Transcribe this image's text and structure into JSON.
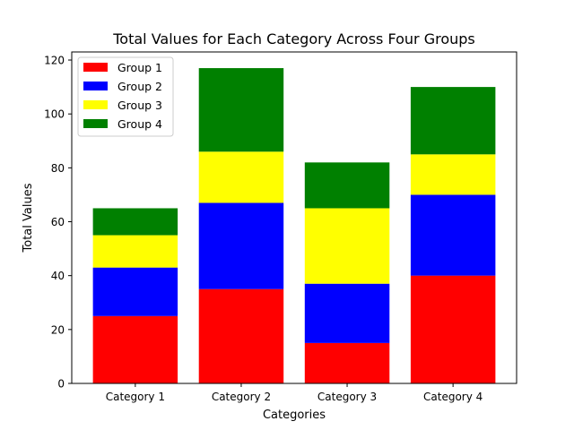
{
  "chart_data": {
    "type": "bar",
    "stacked": true,
    "title": "Total Values for Each Category Across Four Groups",
    "xlabel": "Categories",
    "ylabel": "Total Values",
    "categories": [
      "Category 1",
      "Category 2",
      "Category 3",
      "Category 4"
    ],
    "series": [
      {
        "name": "Group 1",
        "color": "#ff0000",
        "values": [
          25,
          35,
          15,
          40
        ]
      },
      {
        "name": "Group 2",
        "color": "#0000ff",
        "values": [
          18,
          32,
          22,
          30
        ]
      },
      {
        "name": "Group 3",
        "color": "#ffff00",
        "values": [
          12,
          19,
          28,
          15
        ]
      },
      {
        "name": "Group 4",
        "color": "#008000",
        "values": [
          10,
          31,
          17,
          25
        ]
      }
    ],
    "ylim": [
      0,
      123
    ],
    "yticks": [
      0,
      20,
      40,
      60,
      80,
      100,
      120
    ],
    "grid": false,
    "legend_position": "top-left"
  }
}
